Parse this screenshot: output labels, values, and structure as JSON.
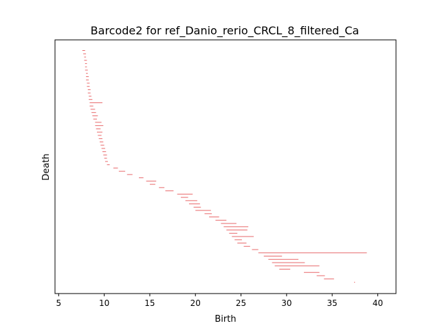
{
  "chart_data": {
    "type": "barcode",
    "title": "Barcode2 for ref_Danio_rerio_CRCL_8_filtered_Ca",
    "xlabel": "Birth",
    "ylabel": "Death",
    "xlim": [
      4.6,
      42.0
    ],
    "xticks": [
      5,
      10,
      15,
      20,
      25,
      30,
      35,
      40
    ],
    "xtick_labels": [
      "5",
      "10",
      "15",
      "20",
      "25",
      "30",
      "35",
      "40"
    ],
    "y_ticks_shown": false,
    "grid": false,
    "bar_color": "#e8696b",
    "bars": [
      [
        7.6,
        7.9
      ],
      [
        7.7,
        8.0
      ],
      [
        7.8,
        8.0
      ],
      [
        7.8,
        8.1
      ],
      [
        7.9,
        8.1
      ],
      [
        7.9,
        8.1
      ],
      [
        7.9,
        8.2
      ],
      [
        8.0,
        8.2
      ],
      [
        8.0,
        8.3
      ],
      [
        8.0,
        8.3
      ],
      [
        8.1,
        8.4
      ],
      [
        8.1,
        8.4
      ],
      [
        8.2,
        8.5
      ],
      [
        8.2,
        8.5
      ],
      [
        8.3,
        8.6
      ],
      [
        8.3,
        8.7
      ],
      [
        8.4,
        9.8
      ],
      [
        8.4,
        8.8
      ],
      [
        8.5,
        9.0
      ],
      [
        8.6,
        9.1
      ],
      [
        8.7,
        9.3
      ],
      [
        8.8,
        9.2
      ],
      [
        9.0,
        9.7
      ],
      [
        9.0,
        9.9
      ],
      [
        9.1,
        9.6
      ],
      [
        9.2,
        9.8
      ],
      [
        9.3,
        9.7
      ],
      [
        9.4,
        9.8
      ],
      [
        9.5,
        9.9
      ],
      [
        9.6,
        10.0
      ],
      [
        9.7,
        10.1
      ],
      [
        9.8,
        10.2
      ],
      [
        9.9,
        10.3
      ],
      [
        10.0,
        10.3
      ],
      [
        10.1,
        10.4
      ],
      [
        10.3,
        10.6
      ],
      [
        11.0,
        11.5
      ],
      [
        11.6,
        12.3
      ],
      [
        12.5,
        13.1
      ],
      [
        13.8,
        14.3
      ],
      [
        14.6,
        15.7
      ],
      [
        15.0,
        15.6
      ],
      [
        16.0,
        16.6
      ],
      [
        16.7,
        17.6
      ],
      [
        18.0,
        19.7
      ],
      [
        18.4,
        19.2
      ],
      [
        18.9,
        20.2
      ],
      [
        19.3,
        20.5
      ],
      [
        19.8,
        20.6
      ],
      [
        20.0,
        21.7
      ],
      [
        21.0,
        21.8
      ],
      [
        21.5,
        22.6
      ],
      [
        22.2,
        23.4
      ],
      [
        22.8,
        24.5
      ],
      [
        23.1,
        25.8
      ],
      [
        23.4,
        25.7
      ],
      [
        23.7,
        24.6
      ],
      [
        24.0,
        26.4
      ],
      [
        24.3,
        25.1
      ],
      [
        24.6,
        25.6
      ],
      [
        25.3,
        26.0
      ],
      [
        26.2,
        26.9
      ],
      [
        26.9,
        38.8
      ],
      [
        27.5,
        29.5
      ],
      [
        28.0,
        31.3
      ],
      [
        28.4,
        32.0
      ],
      [
        28.7,
        33.6
      ],
      [
        29.2,
        30.4
      ],
      [
        31.9,
        33.6
      ],
      [
        33.3,
        34.2
      ],
      [
        34.1,
        35.2
      ],
      [
        37.4,
        37.5
      ]
    ]
  }
}
